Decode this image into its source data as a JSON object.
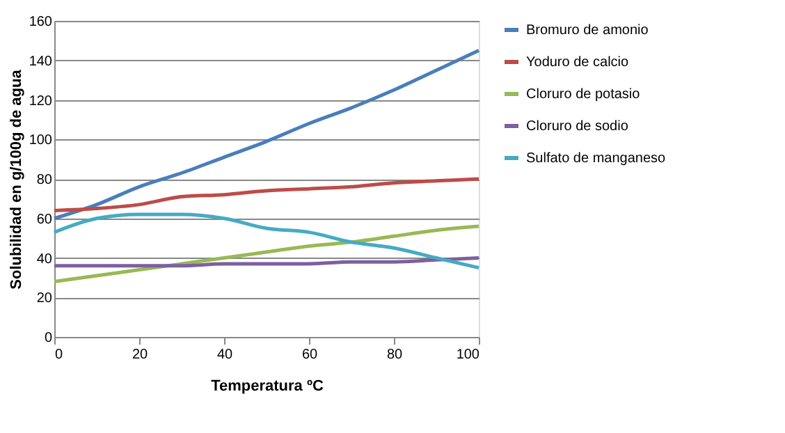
{
  "chart_data": {
    "type": "line",
    "xlabel": "Temperatura ºC",
    "ylabel": "Solubilidad en g/100g de agua",
    "x": [
      0,
      10,
      20,
      30,
      40,
      50,
      60,
      70,
      80,
      90,
      100
    ],
    "series": [
      {
        "name": "Bromuro de amonio",
        "color": "#4a7ebb",
        "values": [
          60,
          67,
          76,
          83,
          91,
          99,
          108,
          116,
          125,
          135,
          145
        ]
      },
      {
        "name": "Yoduro de calcio",
        "color": "#be4b48",
        "values": [
          64,
          65,
          67,
          71,
          72,
          74,
          75,
          76,
          78,
          79,
          80
        ]
      },
      {
        "name": "Cloruro de potasio",
        "color": "#98b954",
        "values": [
          28,
          31,
          34,
          37,
          40,
          43,
          46,
          48,
          51,
          54,
          56
        ]
      },
      {
        "name": "Cloruro de sodio",
        "color": "#7d60a0",
        "values": [
          36,
          36,
          36,
          36,
          37,
          37,
          37,
          38,
          38,
          39,
          40
        ]
      },
      {
        "name": "Sulfato de manganeso",
        "color": "#46aac5",
        "values": [
          53,
          60,
          62,
          62,
          60,
          55,
          53,
          48,
          45,
          40,
          35
        ]
      }
    ],
    "xlim": [
      0,
      100
    ],
    "xticks": [
      0,
      20,
      40,
      60,
      80,
      100
    ],
    "ylim": [
      0,
      160
    ],
    "yticks": [
      0,
      20,
      40,
      60,
      80,
      100,
      120,
      140,
      160
    ],
    "grid": "y",
    "legend": "right",
    "marker": "none",
    "line_style": "solid"
  }
}
